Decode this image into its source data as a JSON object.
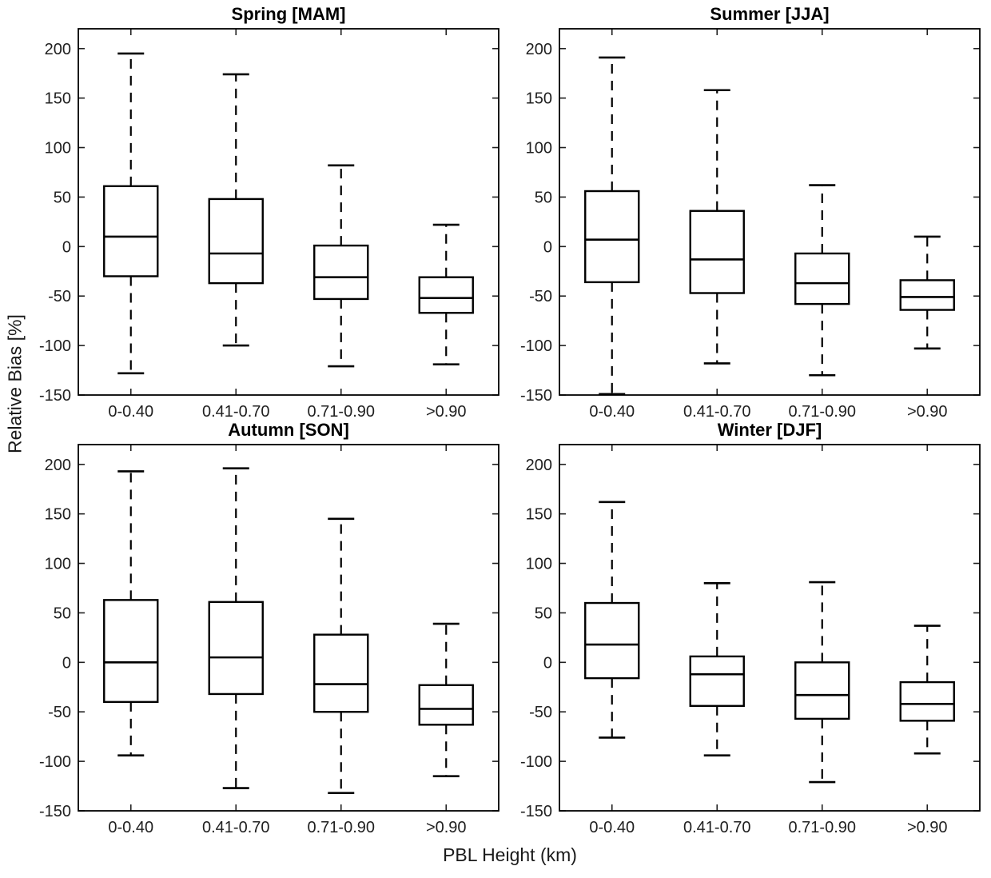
{
  "figure": {
    "ylabel": "Relative Bias [%]",
    "xlabel": "PBL Height (km)",
    "background_color": "#ffffff",
    "line_color": "#000000",
    "text_color": "#202020"
  },
  "chart_data": [
    {
      "type": "boxplot",
      "title": "Spring [MAM]",
      "categories": [
        "0-0.40",
        "0.41-0.70",
        "0.71-0.90",
        ">0.90"
      ],
      "yticks": [
        200,
        150,
        100,
        50,
        0,
        -50,
        -100,
        -150
      ],
      "ylim": [
        -150,
        220
      ],
      "grid": false,
      "series": [
        {
          "category": "0-0.40",
          "whisker_low": -128,
          "q1": -30,
          "median": 10,
          "q3": 61,
          "whisker_high": 195
        },
        {
          "category": "0.41-0.70",
          "whisker_low": -100,
          "q1": -37,
          "median": -7,
          "q3": 48,
          "whisker_high": 174
        },
        {
          "category": "0.71-0.90",
          "whisker_low": -121,
          "q1": -53,
          "median": -31,
          "q3": 1,
          "whisker_high": 82
        },
        {
          "category": ">0.90",
          "whisker_low": -119,
          "q1": -67,
          "median": -52,
          "q3": -31,
          "whisker_high": 22
        }
      ]
    },
    {
      "type": "boxplot",
      "title": "Summer [JJA]",
      "categories": [
        "0-0.40",
        "0.41-0.70",
        "0.71-0.90",
        ">0.90"
      ],
      "yticks": [
        200,
        150,
        100,
        50,
        0,
        -50,
        -100,
        -150
      ],
      "ylim": [
        -150,
        220
      ],
      "grid": false,
      "series": [
        {
          "category": "0-0.40",
          "whisker_low": -149,
          "q1": -36,
          "median": 7,
          "q3": 56,
          "whisker_high": 191
        },
        {
          "category": "0.41-0.70",
          "whisker_low": -118,
          "q1": -47,
          "median": -13,
          "q3": 36,
          "whisker_high": 158
        },
        {
          "category": "0.71-0.90",
          "whisker_low": -130,
          "q1": -58,
          "median": -37,
          "q3": -7,
          "whisker_high": 62
        },
        {
          "category": ">0.90",
          "whisker_low": -103,
          "q1": -64,
          "median": -51,
          "q3": -34,
          "whisker_high": 10
        }
      ]
    },
    {
      "type": "boxplot",
      "title": "Autumn [SON]",
      "categories": [
        "0-0.40",
        "0.41-0.70",
        "0.71-0.90",
        ">0.90"
      ],
      "yticks": [
        200,
        150,
        100,
        50,
        0,
        -50,
        -100,
        -150
      ],
      "ylim": [
        -150,
        220
      ],
      "grid": false,
      "series": [
        {
          "category": "0-0.40",
          "whisker_low": -94,
          "q1": -40,
          "median": 0,
          "q3": 63,
          "whisker_high": 193
        },
        {
          "category": "0.41-0.70",
          "whisker_low": -127,
          "q1": -32,
          "median": 5,
          "q3": 61,
          "whisker_high": 196
        },
        {
          "category": "0.71-0.90",
          "whisker_low": -132,
          "q1": -50,
          "median": -22,
          "q3": 28,
          "whisker_high": 145
        },
        {
          "category": ">0.90",
          "whisker_low": -115,
          "q1": -63,
          "median": -47,
          "q3": -23,
          "whisker_high": 39
        }
      ]
    },
    {
      "type": "boxplot",
      "title": "Winter [DJF]",
      "categories": [
        "0-0.40",
        "0.41-0.70",
        "0.71-0.90",
        ">0.90"
      ],
      "yticks": [
        200,
        150,
        100,
        50,
        0,
        -50,
        -100,
        -150
      ],
      "ylim": [
        -150,
        220
      ],
      "grid": false,
      "series": [
        {
          "category": "0-0.40",
          "whisker_low": -76,
          "q1": -16,
          "median": 18,
          "q3": 60,
          "whisker_high": 162
        },
        {
          "category": "0.41-0.70",
          "whisker_low": -94,
          "q1": -44,
          "median": -12,
          "q3": 6,
          "whisker_high": 80
        },
        {
          "category": "0.71-0.90",
          "whisker_low": -121,
          "q1": -57,
          "median": -33,
          "q3": 0,
          "whisker_high": 81
        },
        {
          "category": ">0.90",
          "whisker_low": -92,
          "q1": -59,
          "median": -42,
          "q3": -20,
          "whisker_high": 37
        }
      ]
    }
  ]
}
